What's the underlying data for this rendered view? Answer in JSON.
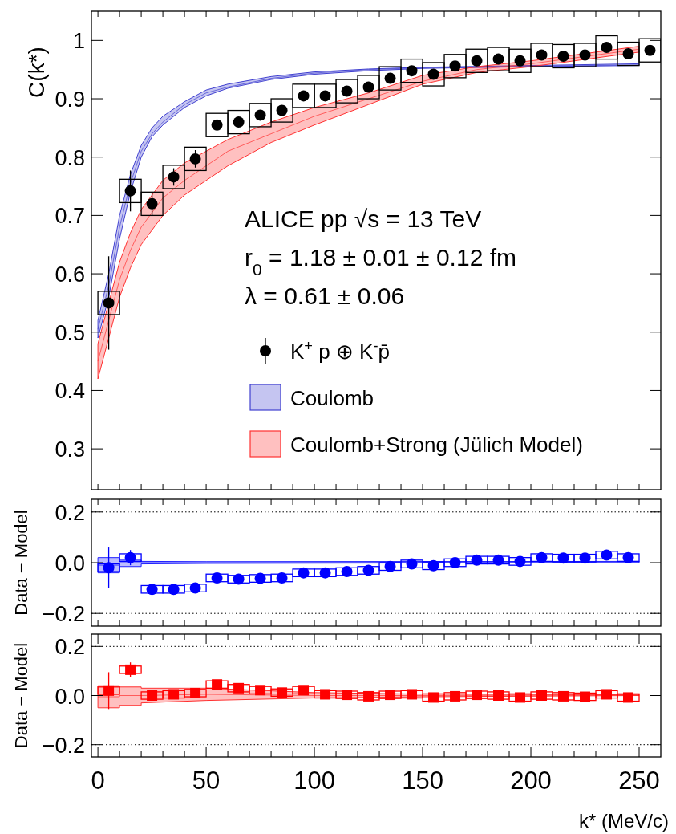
{
  "chart_data": [
    {
      "type": "scatter",
      "ylabel": "C(k*)",
      "xlim": [
        -3,
        260
      ],
      "ylim": [
        0.23,
        1.05
      ],
      "tick_labels": "y",
      "marker": "circle",
      "legend": "right",
      "xticks": [
        {
          "value": 0,
          "label": null
        },
        {
          "value": 10,
          "label": null
        },
        {
          "value": 20,
          "label": null
        },
        {
          "value": 30,
          "label": null
        },
        {
          "value": 40,
          "label": null
        },
        {
          "value": 50,
          "label": null
        },
        {
          "value": 60,
          "label": null
        },
        {
          "value": 70,
          "label": null
        },
        {
          "value": 80,
          "label": null
        },
        {
          "value": 90,
          "label": null
        },
        {
          "value": 100,
          "label": null
        },
        {
          "value": 110,
          "label": null
        },
        {
          "value": 120,
          "label": null
        },
        {
          "value": 130,
          "label": null
        },
        {
          "value": 140,
          "label": null
        },
        {
          "value": 150,
          "label": null
        },
        {
          "value": 160,
          "label": null
        },
        {
          "value": 170,
          "label": null
        },
        {
          "value": 180,
          "label": null
        },
        {
          "value": 190,
          "label": null
        },
        {
          "value": 200,
          "label": null
        },
        {
          "value": 210,
          "label": null
        },
        {
          "value": 220,
          "label": null
        },
        {
          "value": 230,
          "label": null
        },
        {
          "value": 240,
          "label": null
        },
        {
          "value": 250,
          "label": null
        }
      ],
      "yticks": [
        0.3,
        0.4,
        0.5,
        0.6,
        0.7,
        0.8,
        0.9,
        1
      ],
      "annotations": [
        "ALICE pp √s = 13 TeV",
        "r$_{0}$ = 1.18 ± 0.01 ± 0.12 fm",
        "λ = 0.61 ± 0.06"
      ],
      "series": [
        {
          "type": "scatter",
          "name": "K$^{+}$ p ⊕ K$^{-}$p̄",
          "color": "#000000",
          "x": [
            5,
            15,
            25,
            35,
            45,
            55,
            65,
            75,
            85,
            95,
            105,
            115,
            125,
            135,
            145,
            155,
            165,
            175,
            185,
            195,
            205,
            215,
            225,
            235,
            245,
            255
          ],
          "values": [
            0.55,
            0.742,
            0.72,
            0.766,
            0.797,
            0.855,
            0.86,
            0.872,
            0.88,
            0.905,
            0.905,
            0.913,
            0.92,
            0.935,
            0.948,
            0.942,
            0.956,
            0.965,
            0.968,
            0.965,
            0.975,
            0.973,
            0.975,
            0.988,
            0.977,
            0.983
          ],
          "errors": [
            0.08,
            0.035,
            0.02,
            0.015,
            0.015,
            null,
            null,
            null,
            null,
            null,
            null,
            null,
            null,
            null,
            null,
            null,
            null,
            null,
            null,
            null,
            null,
            null,
            null,
            null,
            null,
            null
          ]
        },
        {
          "type": "line",
          "marker": "none",
          "name": "Coulomb",
          "color": "#4040d0",
          "x": [
            0,
            5,
            10,
            15,
            20,
            25,
            30,
            40,
            50,
            60,
            80,
            100,
            125,
            150,
            200,
            250
          ],
          "values": [
            0.505,
            0.58,
            0.68,
            0.755,
            0.81,
            0.84,
            0.86,
            0.89,
            0.91,
            0.92,
            0.935,
            0.944,
            0.95,
            0.953,
            0.956,
            0.958
          ],
          "lower": [
            0.49,
            0.56,
            0.66,
            0.74,
            0.8,
            0.835,
            0.855,
            0.885,
            0.905,
            0.918,
            0.933,
            0.942,
            0.948,
            0.952,
            0.955,
            0.957
          ],
          "upper": [
            0.52,
            0.6,
            0.7,
            0.77,
            0.82,
            0.85,
            0.87,
            0.895,
            0.915,
            0.925,
            0.938,
            0.946,
            0.951,
            0.954,
            0.957,
            0.96
          ]
        },
        {
          "type": "line",
          "marker": "none",
          "name": "Coulomb+Strong (Jülich Model)",
          "color": "#ff3030",
          "x": [
            0,
            5,
            10,
            15,
            20,
            30,
            40,
            50,
            60,
            80,
            100,
            125,
            150,
            175,
            200,
            250
          ],
          "values": [
            0.45,
            0.52,
            0.59,
            0.64,
            0.68,
            0.73,
            0.76,
            0.785,
            0.81,
            0.84,
            0.87,
            0.9,
            0.93,
            0.95,
            0.96,
            0.985
          ],
          "lower": [
            0.42,
            0.49,
            0.56,
            0.61,
            0.65,
            0.7,
            0.735,
            0.76,
            0.785,
            0.825,
            0.855,
            0.89,
            0.925,
            0.945,
            0.955,
            0.98
          ],
          "upper": [
            0.48,
            0.55,
            0.62,
            0.67,
            0.71,
            0.76,
            0.79,
            0.81,
            0.83,
            0.86,
            0.885,
            0.91,
            0.94,
            0.955,
            0.965,
            0.99
          ]
        },
        {
          "type": "bar",
          "color": "#000000",
          "x": [
            5,
            15,
            25,
            35,
            45,
            55,
            65,
            75,
            85,
            95,
            105,
            115,
            125,
            135,
            145,
            155,
            165,
            175,
            185,
            195,
            205,
            215,
            225,
            235,
            245,
            255
          ],
          "base": [
            0.53,
            0.722,
            0.7,
            0.746,
            0.777,
            0.835,
            0.84,
            0.852,
            0.86,
            0.885,
            0.885,
            0.893,
            0.9,
            0.915,
            0.928,
            0.922,
            0.936,
            0.945,
            0.948,
            0.945,
            0.955,
            0.953,
            0.955,
            0.968,
            0.957,
            0.963
          ],
          "values": [
            0.04,
            0.04,
            0.04,
            0.04,
            0.04,
            0.04,
            0.04,
            0.04,
            0.04,
            0.04,
            0.04,
            0.04,
            0.04,
            0.04,
            0.04,
            0.04,
            0.04,
            0.04,
            0.04,
            0.04,
            0.04,
            0.04,
            0.04,
            0.04,
            0.04,
            0.04
          ]
        }
      ]
    },
    {
      "type": "scatter",
      "ylabel": "Data − Model",
      "xlim": [
        -3,
        260
      ],
      "ylim": [
        -0.25,
        0.25
      ],
      "tick_labels": "y",
      "marker": "circle",
      "xticks": [
        {
          "value": 0,
          "label": null
        },
        {
          "value": 10,
          "label": null
        },
        {
          "value": 20,
          "label": null
        },
        {
          "value": 30,
          "label": null
        },
        {
          "value": 40,
          "label": null
        },
        {
          "value": 50,
          "label": null
        },
        {
          "value": 60,
          "label": null
        },
        {
          "value": 70,
          "label": null
        },
        {
          "value": 80,
          "label": null
        },
        {
          "value": 90,
          "label": null
        },
        {
          "value": 100,
          "label": null
        },
        {
          "value": 110,
          "label": null
        },
        {
          "value": 120,
          "label": null
        },
        {
          "value": 130,
          "label": null
        },
        {
          "value": 140,
          "label": null
        },
        {
          "value": 150,
          "label": null
        },
        {
          "value": 160,
          "label": null
        },
        {
          "value": 170,
          "label": null
        },
        {
          "value": 180,
          "label": null
        },
        {
          "value": 190,
          "label": null
        },
        {
          "value": 200,
          "label": null
        },
        {
          "value": 210,
          "label": null
        },
        {
          "value": 220,
          "label": null
        },
        {
          "value": 230,
          "label": null
        },
        {
          "value": 240,
          "label": null
        },
        {
          "value": 250,
          "label": null
        }
      ],
      "yticks": [
        {
          "value": 0.2,
          "label": "0.2"
        },
        {
          "value": 0,
          "label": "0.0"
        },
        {
          "value": -0.2,
          "label": "−0.2"
        }
      ],
      "ref_lines": [
        {
          "axis": "y",
          "value": 0.2,
          "color": "#000000",
          "line_style": "dotted"
        },
        {
          "axis": "y",
          "value": -0.2,
          "color": "#000000",
          "line_style": "dotted"
        }
      ],
      "series": [
        {
          "type": "line",
          "marker": "none",
          "color": "#2020ff",
          "x": [
            0,
            10,
            10,
            20,
            20,
            50,
            250
          ],
          "values": [
            -0.01,
            -0.01,
            0,
            0,
            0,
            0,
            0.003
          ],
          "lower": [
            -0.04,
            -0.04,
            -0.015,
            -0.015,
            -0.005,
            -0.003,
            0
          ],
          "upper": [
            0.02,
            0.02,
            0.01,
            0.01,
            0.005,
            0.004,
            0.005
          ]
        },
        {
          "type": "bar",
          "color": "#0000ff",
          "x": [
            5,
            15,
            25,
            35,
            45,
            55,
            65,
            75,
            85,
            95,
            105,
            115,
            125,
            135,
            145,
            155,
            165,
            175,
            185,
            195,
            205,
            215,
            225,
            235,
            245
          ],
          "base": [
            -0.035,
            0.005,
            -0.12,
            -0.12,
            -0.115,
            -0.075,
            -0.08,
            -0.077,
            -0.075,
            -0.055,
            -0.055,
            -0.05,
            -0.045,
            -0.03,
            -0.02,
            -0.027,
            -0.015,
            -0.005,
            -0.005,
            -0.01,
            0.005,
            0.003,
            0.003,
            0.015,
            0.005
          ],
          "values": [
            0.03,
            0.03,
            0.03,
            0.03,
            0.03,
            0.03,
            0.03,
            0.03,
            0.03,
            0.03,
            0.03,
            0.03,
            0.03,
            0.03,
            0.03,
            0.03,
            0.03,
            0.03,
            0.03,
            0.03,
            0.03,
            0.03,
            0.03,
            0.03,
            0.03
          ]
        },
        {
          "type": "scatter",
          "color": "#0000ff",
          "x": [
            5,
            15,
            25,
            35,
            45,
            55,
            65,
            75,
            85,
            95,
            105,
            115,
            125,
            135,
            145,
            155,
            165,
            175,
            185,
            195,
            205,
            215,
            225,
            235,
            245
          ],
          "values": [
            -0.02,
            0.02,
            -0.105,
            -0.105,
            -0.1,
            -0.06,
            -0.065,
            -0.062,
            -0.06,
            -0.04,
            -0.04,
            -0.035,
            -0.03,
            -0.015,
            -0.005,
            -0.012,
            0,
            0.01,
            0.01,
            0.005,
            0.02,
            0.018,
            0.018,
            0.03,
            0.02
          ],
          "errors": [
            0.08,
            0.03,
            null,
            null,
            null,
            null,
            null,
            null,
            null,
            null,
            null,
            null,
            null,
            null,
            null,
            null,
            null,
            null,
            null,
            null,
            null,
            null,
            null,
            null,
            null
          ]
        }
      ]
    },
    {
      "type": "scatter",
      "ylabel": "Data − Model",
      "xlabel": "k* (MeV/c)",
      "xlim": [
        -3,
        260
      ],
      "ylim": [
        -0.25,
        0.25
      ],
      "marker": "square",
      "xticks": [
        {
          "value": 0,
          "label": "0"
        },
        {
          "value": 10,
          "label": null
        },
        {
          "value": 20,
          "label": null
        },
        {
          "value": 30,
          "label": null
        },
        {
          "value": 40,
          "label": null
        },
        {
          "value": 50,
          "label": "50"
        },
        {
          "value": 60,
          "label": null
        },
        {
          "value": 70,
          "label": null
        },
        {
          "value": 80,
          "label": null
        },
        {
          "value": 90,
          "label": null
        },
        {
          "value": 100,
          "label": "100"
        },
        {
          "value": 110,
          "label": null
        },
        {
          "value": 120,
          "label": null
        },
        {
          "value": 130,
          "label": null
        },
        {
          "value": 140,
          "label": null
        },
        {
          "value": 150,
          "label": "150"
        },
        {
          "value": 160,
          "label": null
        },
        {
          "value": 170,
          "label": null
        },
        {
          "value": 180,
          "label": null
        },
        {
          "value": 190,
          "label": null
        },
        {
          "value": 200,
          "label": "200"
        },
        {
          "value": 210,
          "label": null
        },
        {
          "value": 220,
          "label": null
        },
        {
          "value": 230,
          "label": null
        },
        {
          "value": 240,
          "label": null
        },
        {
          "value": 250,
          "label": "250"
        }
      ],
      "yticks": [
        {
          "value": 0.2,
          "label": "0.2"
        },
        {
          "value": 0,
          "label": "0.0"
        },
        {
          "value": -0.2,
          "label": "−0.2"
        }
      ],
      "ref_lines": [
        {
          "axis": "y",
          "value": 0.2,
          "color": "#000000",
          "line_style": "dotted"
        },
        {
          "axis": "y",
          "value": -0.2,
          "color": "#000000",
          "line_style": "dotted"
        }
      ],
      "series": [
        {
          "type": "line",
          "marker": "none",
          "color": "#ff3030",
          "x": [
            0,
            10,
            10,
            20,
            20,
            50,
            100,
            150,
            250
          ],
          "values": [
            -0.005,
            -0.005,
            0,
            0,
            0,
            0.005,
            0,
            0,
            0.002
          ],
          "lower": [
            -0.05,
            -0.05,
            -0.04,
            -0.04,
            -0.03,
            -0.02,
            -0.01,
            -0.005,
            0
          ],
          "upper": [
            0.04,
            0.04,
            0.035,
            0.035,
            0.03,
            0.03,
            0.012,
            0.006,
            0.003
          ]
        },
        {
          "type": "bar",
          "color": "#ff0000",
          "x": [
            5,
            15,
            25,
            35,
            45,
            55,
            65,
            75,
            85,
            95,
            105,
            115,
            125,
            135,
            145,
            155,
            165,
            175,
            185,
            195,
            205,
            215,
            225,
            235,
            245
          ],
          "base": [
            0.005,
            0.09,
            -0.015,
            -0.01,
            -0.005,
            0.03,
            0.015,
            0.007,
            -0.003,
            0.007,
            -0.01,
            -0.012,
            -0.018,
            -0.012,
            -0.01,
            -0.023,
            -0.018,
            -0.012,
            -0.015,
            -0.023,
            -0.015,
            -0.018,
            -0.02,
            -0.01,
            -0.023
          ],
          "values": [
            0.03,
            0.03,
            0.03,
            0.03,
            0.03,
            0.03,
            0.03,
            0.03,
            0.03,
            0.03,
            0.03,
            0.03,
            0.03,
            0.03,
            0.03,
            0.03,
            0.03,
            0.03,
            0.03,
            0.03,
            0.03,
            0.03,
            0.03,
            0.03,
            0.03
          ]
        },
        {
          "type": "scatter",
          "color": "#ff0000",
          "x": [
            5,
            15,
            25,
            35,
            45,
            55,
            65,
            75,
            85,
            95,
            105,
            115,
            125,
            135,
            145,
            155,
            165,
            175,
            185,
            195,
            205,
            215,
            225,
            235,
            245
          ],
          "values": [
            0.02,
            0.105,
            0,
            0.005,
            0.01,
            0.045,
            0.03,
            0.022,
            0.012,
            0.022,
            0.005,
            0.003,
            -0.003,
            0.003,
            0.005,
            -0.008,
            -0.003,
            0.003,
            0,
            -0.008,
            0,
            -0.003,
            -0.005,
            0.005,
            -0.008
          ],
          "errors": [
            0.075,
            0.03,
            null,
            null,
            null,
            null,
            null,
            null,
            null,
            null,
            null,
            null,
            null,
            null,
            null,
            null,
            null,
            null,
            null,
            null,
            null,
            null,
            null,
            null,
            null
          ]
        }
      ]
    }
  ]
}
